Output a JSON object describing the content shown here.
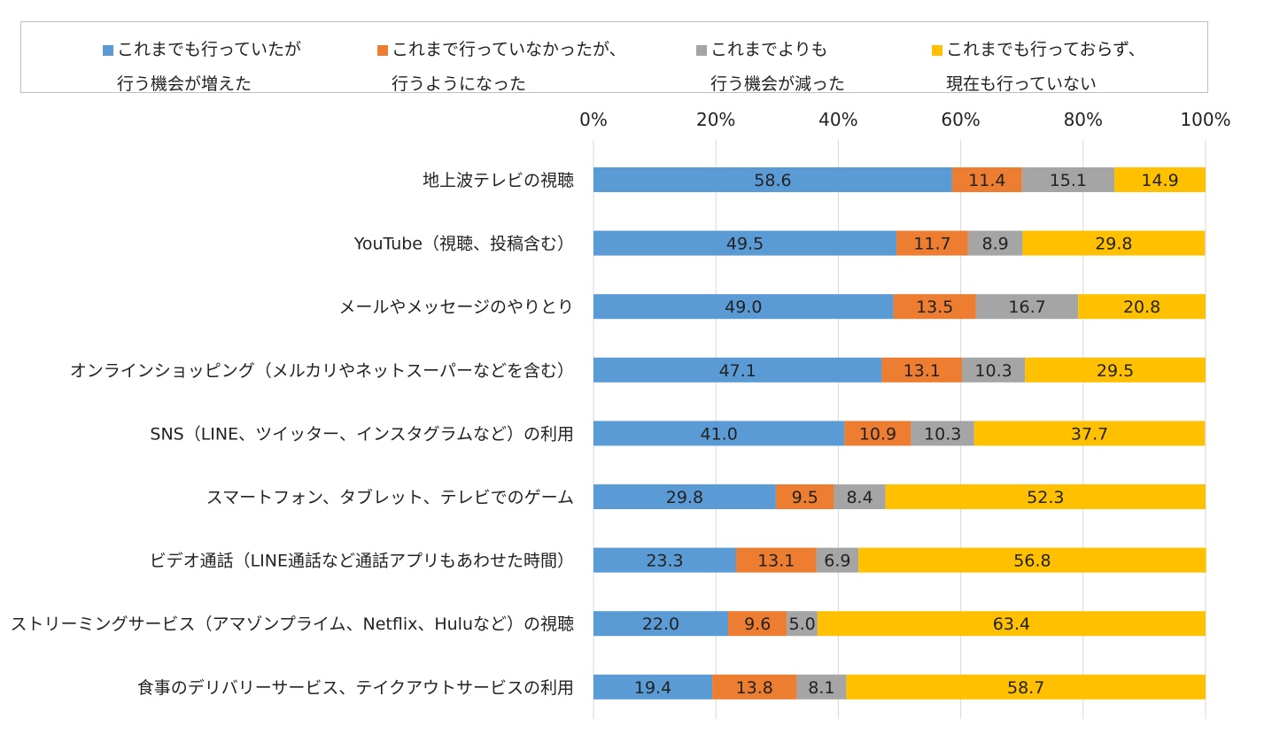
{
  "chart_data": {
    "type": "bar",
    "orientation": "horizontal",
    "stacked": true,
    "xlim": [
      0,
      100
    ],
    "x_ticks": [
      "0%",
      "20%",
      "40%",
      "60%",
      "80%",
      "100%"
    ],
    "grid": true,
    "legend_position": "top",
    "categories": [
      "地上波テレビの視聴",
      "YouTube（視聴、投稿含む）",
      "メールやメッセージのやりとり",
      "オンラインショッピング（メルカリやネットスーパーなどを含む）",
      "SNS（LINE、ツイッター、インスタグラムなど）の利用",
      "スマートフォン、タブレット、テレビでのゲーム",
      "ビデオ通話（LINE通話など通話アプリもあわせた時間）",
      "ストリーミングサービス（アマゾンプライム、Netflix、Huluなど）の視聴",
      "食事のデリバリーサービス、テイクアウトサービスの利用"
    ],
    "series": [
      {
        "name": [
          "これまでも行っていたが",
          "行う機会が増えた"
        ],
        "color": "#5b9bd5",
        "values": [
          58.6,
          49.5,
          49.0,
          47.1,
          41.0,
          29.8,
          23.3,
          22.0,
          19.4
        ],
        "labels": [
          "58.6",
          "49.5",
          "49.0",
          "47.1",
          "41.0",
          "29.8",
          "23.3",
          "22.0",
          "19.4"
        ]
      },
      {
        "name": [
          "これまで行っていなかったが、",
          "行うようになった"
        ],
        "color": "#ed7d31",
        "values": [
          11.4,
          11.7,
          13.5,
          13.1,
          10.9,
          9.5,
          13.1,
          9.6,
          13.8
        ],
        "labels": [
          "11.4",
          "11.7",
          "13.5",
          "13.1",
          "10.9",
          "9.5",
          "13.1",
          "9.6",
          "13.8"
        ]
      },
      {
        "name": [
          "これまでよりも",
          "行う機会が減った"
        ],
        "color": "#a5a5a5",
        "values": [
          15.1,
          8.9,
          16.7,
          10.3,
          10.3,
          8.4,
          6.9,
          5.0,
          8.1
        ],
        "labels": [
          "15.1",
          "8.9",
          "16.7",
          "10.3",
          "10.3",
          "8.4",
          "6.9",
          "5.0",
          "8.1"
        ]
      },
      {
        "name": [
          "これまでも行っておらず、",
          "現在も行っていない"
        ],
        "color": "#ffc000",
        "values": [
          14.9,
          29.8,
          20.8,
          29.5,
          37.7,
          52.3,
          56.8,
          63.4,
          58.7
        ],
        "labels": [
          "14.9",
          "29.8",
          "20.8",
          "29.5",
          "37.7",
          "52.3",
          "56.8",
          "63.4",
          "58.7"
        ]
      }
    ]
  }
}
